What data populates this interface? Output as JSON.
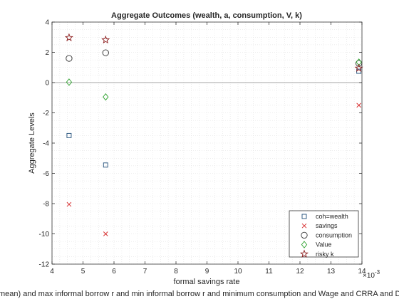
{
  "chart_data": {
    "type": "scatter",
    "title": "Aggregate Outcomes (wealth, a, consumption, V, k)",
    "xlabel": "formal savings rate",
    "ylabel": "Aggregate Levels",
    "bottom_caption": "mean) and max informal borrow r and min informal borrow r and minimum consumption and Wage and CRRA and D",
    "xlim": [
      4,
      14
    ],
    "ylim": [
      -12,
      4
    ],
    "x_tick_labels": [
      "4",
      "5",
      "6",
      "7",
      "8",
      "9",
      "10",
      "11",
      "12",
      "13",
      "14"
    ],
    "x_exponent_label": "×10",
    "x_exponent_power": "-3",
    "y_tick_labels": [
      "-12",
      "-10",
      "-8",
      "-6",
      "-4",
      "-2",
      "0",
      "2",
      "4"
    ],
    "zero_line": true,
    "grid": "minor-dotted",
    "legend_position": "bottom-right",
    "x": [
      4.55,
      5.73,
      13.9
    ],
    "series": [
      {
        "name": "coh=wealth",
        "marker": "square",
        "color": "#1f4e79",
        "values": [
          -3.5,
          -5.45,
          0.75
        ]
      },
      {
        "name": "savings",
        "marker": "x",
        "color": "#d62728",
        "values": [
          -8.05,
          -10.0,
          -1.5
        ]
      },
      {
        "name": "consumption",
        "marker": "circle",
        "color": "#333333",
        "values": [
          1.6,
          1.97,
          1.27
        ]
      },
      {
        "name": "Value",
        "marker": "diamond",
        "color": "#2ca02c",
        "values": [
          0.03,
          -0.95,
          1.35
        ]
      },
      {
        "name": "risky k",
        "marker": "star",
        "color": "#8b1a1a",
        "values": [
          2.97,
          2.82,
          0.95
        ]
      }
    ]
  }
}
